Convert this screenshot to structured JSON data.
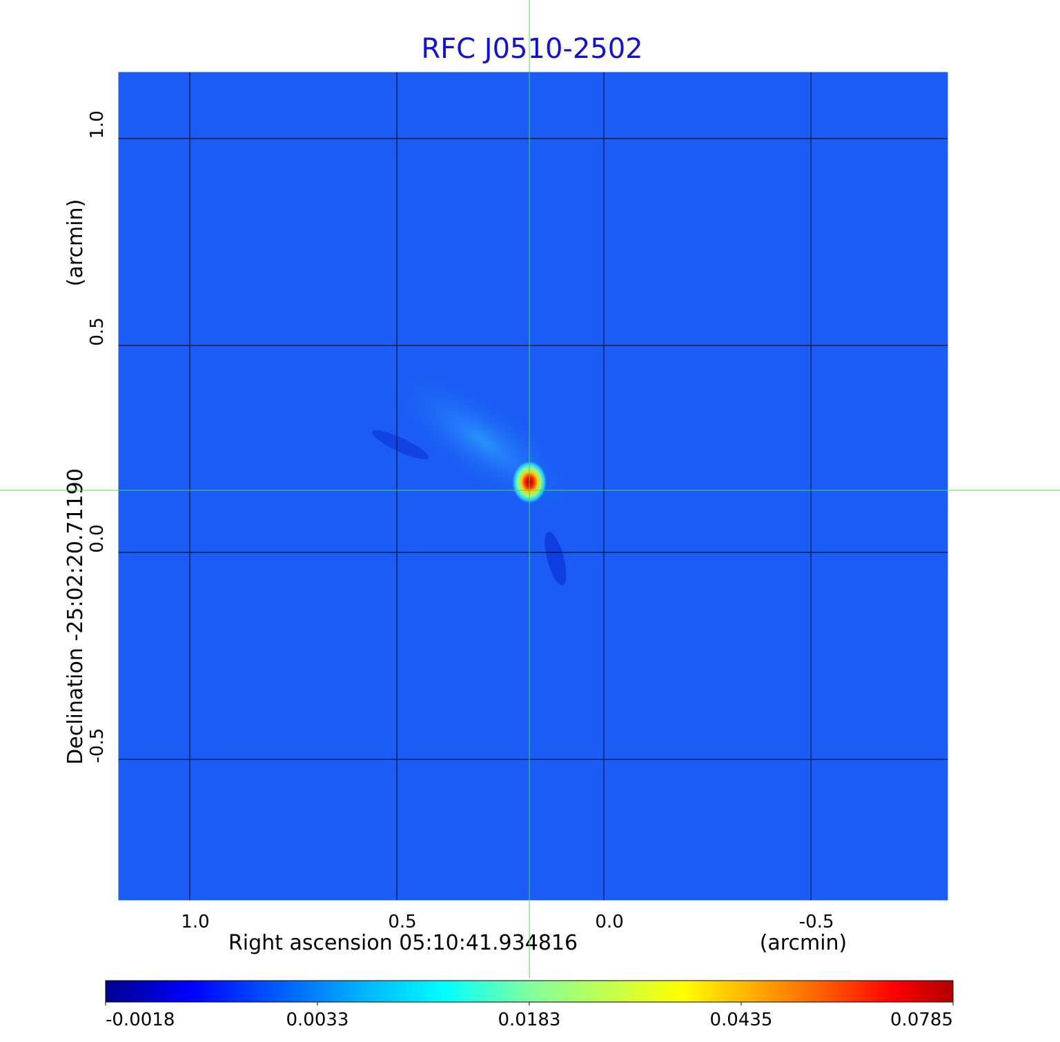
{
  "chart_data": {
    "type": "heatmap",
    "title": "RFC J0510-2502",
    "xlabel": "Right ascension  05:10:41.934816",
    "xunit": "(arcmin)",
    "ylabel": "Declination  -25:02:20.71190",
    "yunit": "(arcmin)",
    "xticks": [
      1.0,
      0.5,
      0.0,
      -0.5
    ],
    "xtick_labels": [
      "1.0",
      "0.5",
      "0.0",
      "-0.5"
    ],
    "yticks": [
      1.0,
      0.5,
      0.0,
      -0.5
    ],
    "ytick_labels": [
      "1.0",
      "0.5",
      "0.0",
      "-0.5"
    ],
    "xlim": [
      1.175,
      -0.833
    ],
    "ylim": [
      -0.843,
      1.163
    ],
    "grid": true,
    "colormap": "jet",
    "colorbar": {
      "position": "bottom",
      "tick_labels": [
        "-0.0018",
        "0.0033",
        "0.0183",
        "0.0435",
        "0.0785"
      ]
    },
    "peak": {
      "x": 0.18,
      "y": 0.17
    },
    "crosshair": {
      "x": 0.18,
      "y": 0.15
    },
    "colors": {
      "title": "#1010e0",
      "background": "#1a5cf5",
      "crosshair": "#40e040"
    }
  }
}
